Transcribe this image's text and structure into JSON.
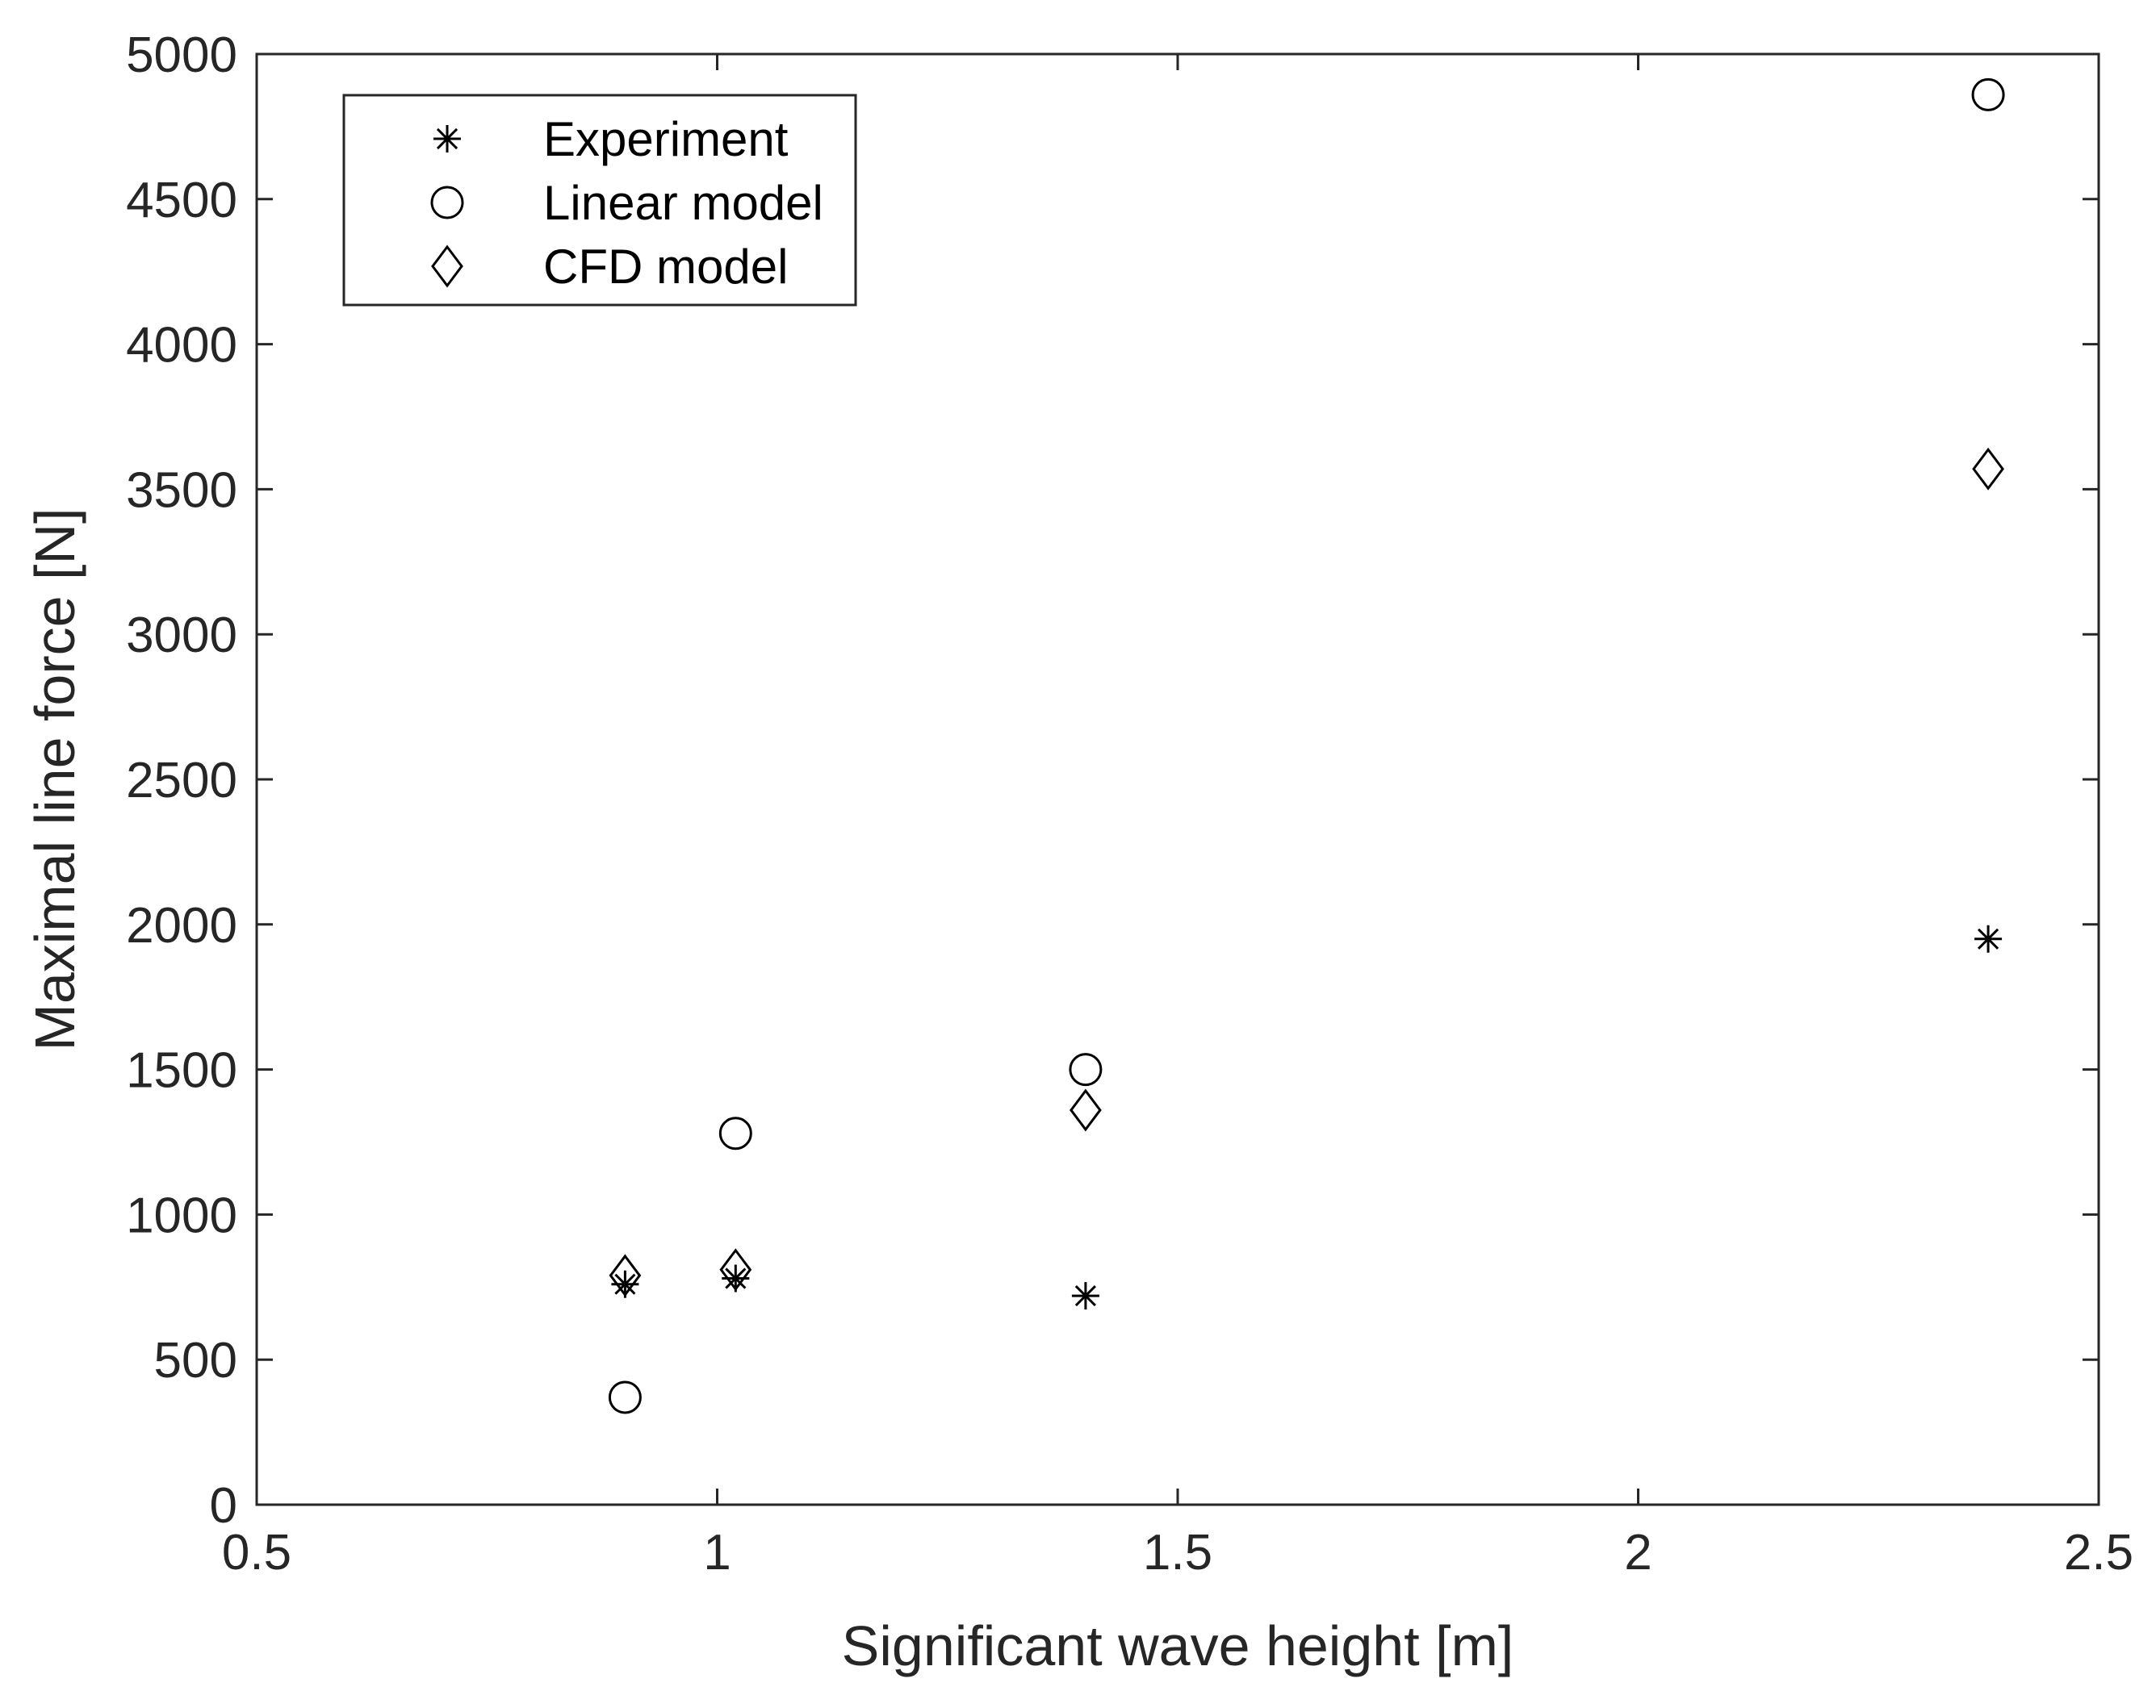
{
  "chart_data": {
    "type": "scatter",
    "title": "",
    "xlabel": "Significant wave height [m]",
    "ylabel": "Maximal line force [N]",
    "xlim": [
      0.5,
      2.5
    ],
    "ylim": [
      0,
      5000
    ],
    "xticks": [
      0.5,
      1,
      1.5,
      2,
      2.5
    ],
    "xtick_labels": [
      "0.5",
      "1",
      "1.5",
      "2",
      "2.5"
    ],
    "yticks": [
      0,
      500,
      1000,
      1500,
      2000,
      2500,
      3000,
      3500,
      4000,
      4500,
      5000
    ],
    "ytick_labels": [
      "0",
      "500",
      "1000",
      "1500",
      "2000",
      "2500",
      "3000",
      "3500",
      "4000",
      "4500",
      "5000"
    ],
    "grid": false,
    "legend_position": "top-left",
    "series": [
      {
        "name": "Experiment",
        "marker": "asterisk",
        "color": "#000000",
        "points": [
          {
            "x": 0.9,
            "y": 760
          },
          {
            "x": 1.02,
            "y": 780
          },
          {
            "x": 1.4,
            "y": 720
          },
          {
            "x": 2.38,
            "y": 1950
          }
        ]
      },
      {
        "name": "Linear model",
        "marker": "circle",
        "color": "#000000",
        "points": [
          {
            "x": 0.9,
            "y": 370
          },
          {
            "x": 1.02,
            "y": 1280
          },
          {
            "x": 1.4,
            "y": 1500
          },
          {
            "x": 2.38,
            "y": 4860
          }
        ]
      },
      {
        "name": "CFD model",
        "marker": "diamond",
        "color": "#000000",
        "points": [
          {
            "x": 0.9,
            "y": 790
          },
          {
            "x": 1.02,
            "y": 810
          },
          {
            "x": 1.4,
            "y": 1360
          },
          {
            "x": 2.38,
            "y": 3570
          }
        ]
      }
    ]
  }
}
